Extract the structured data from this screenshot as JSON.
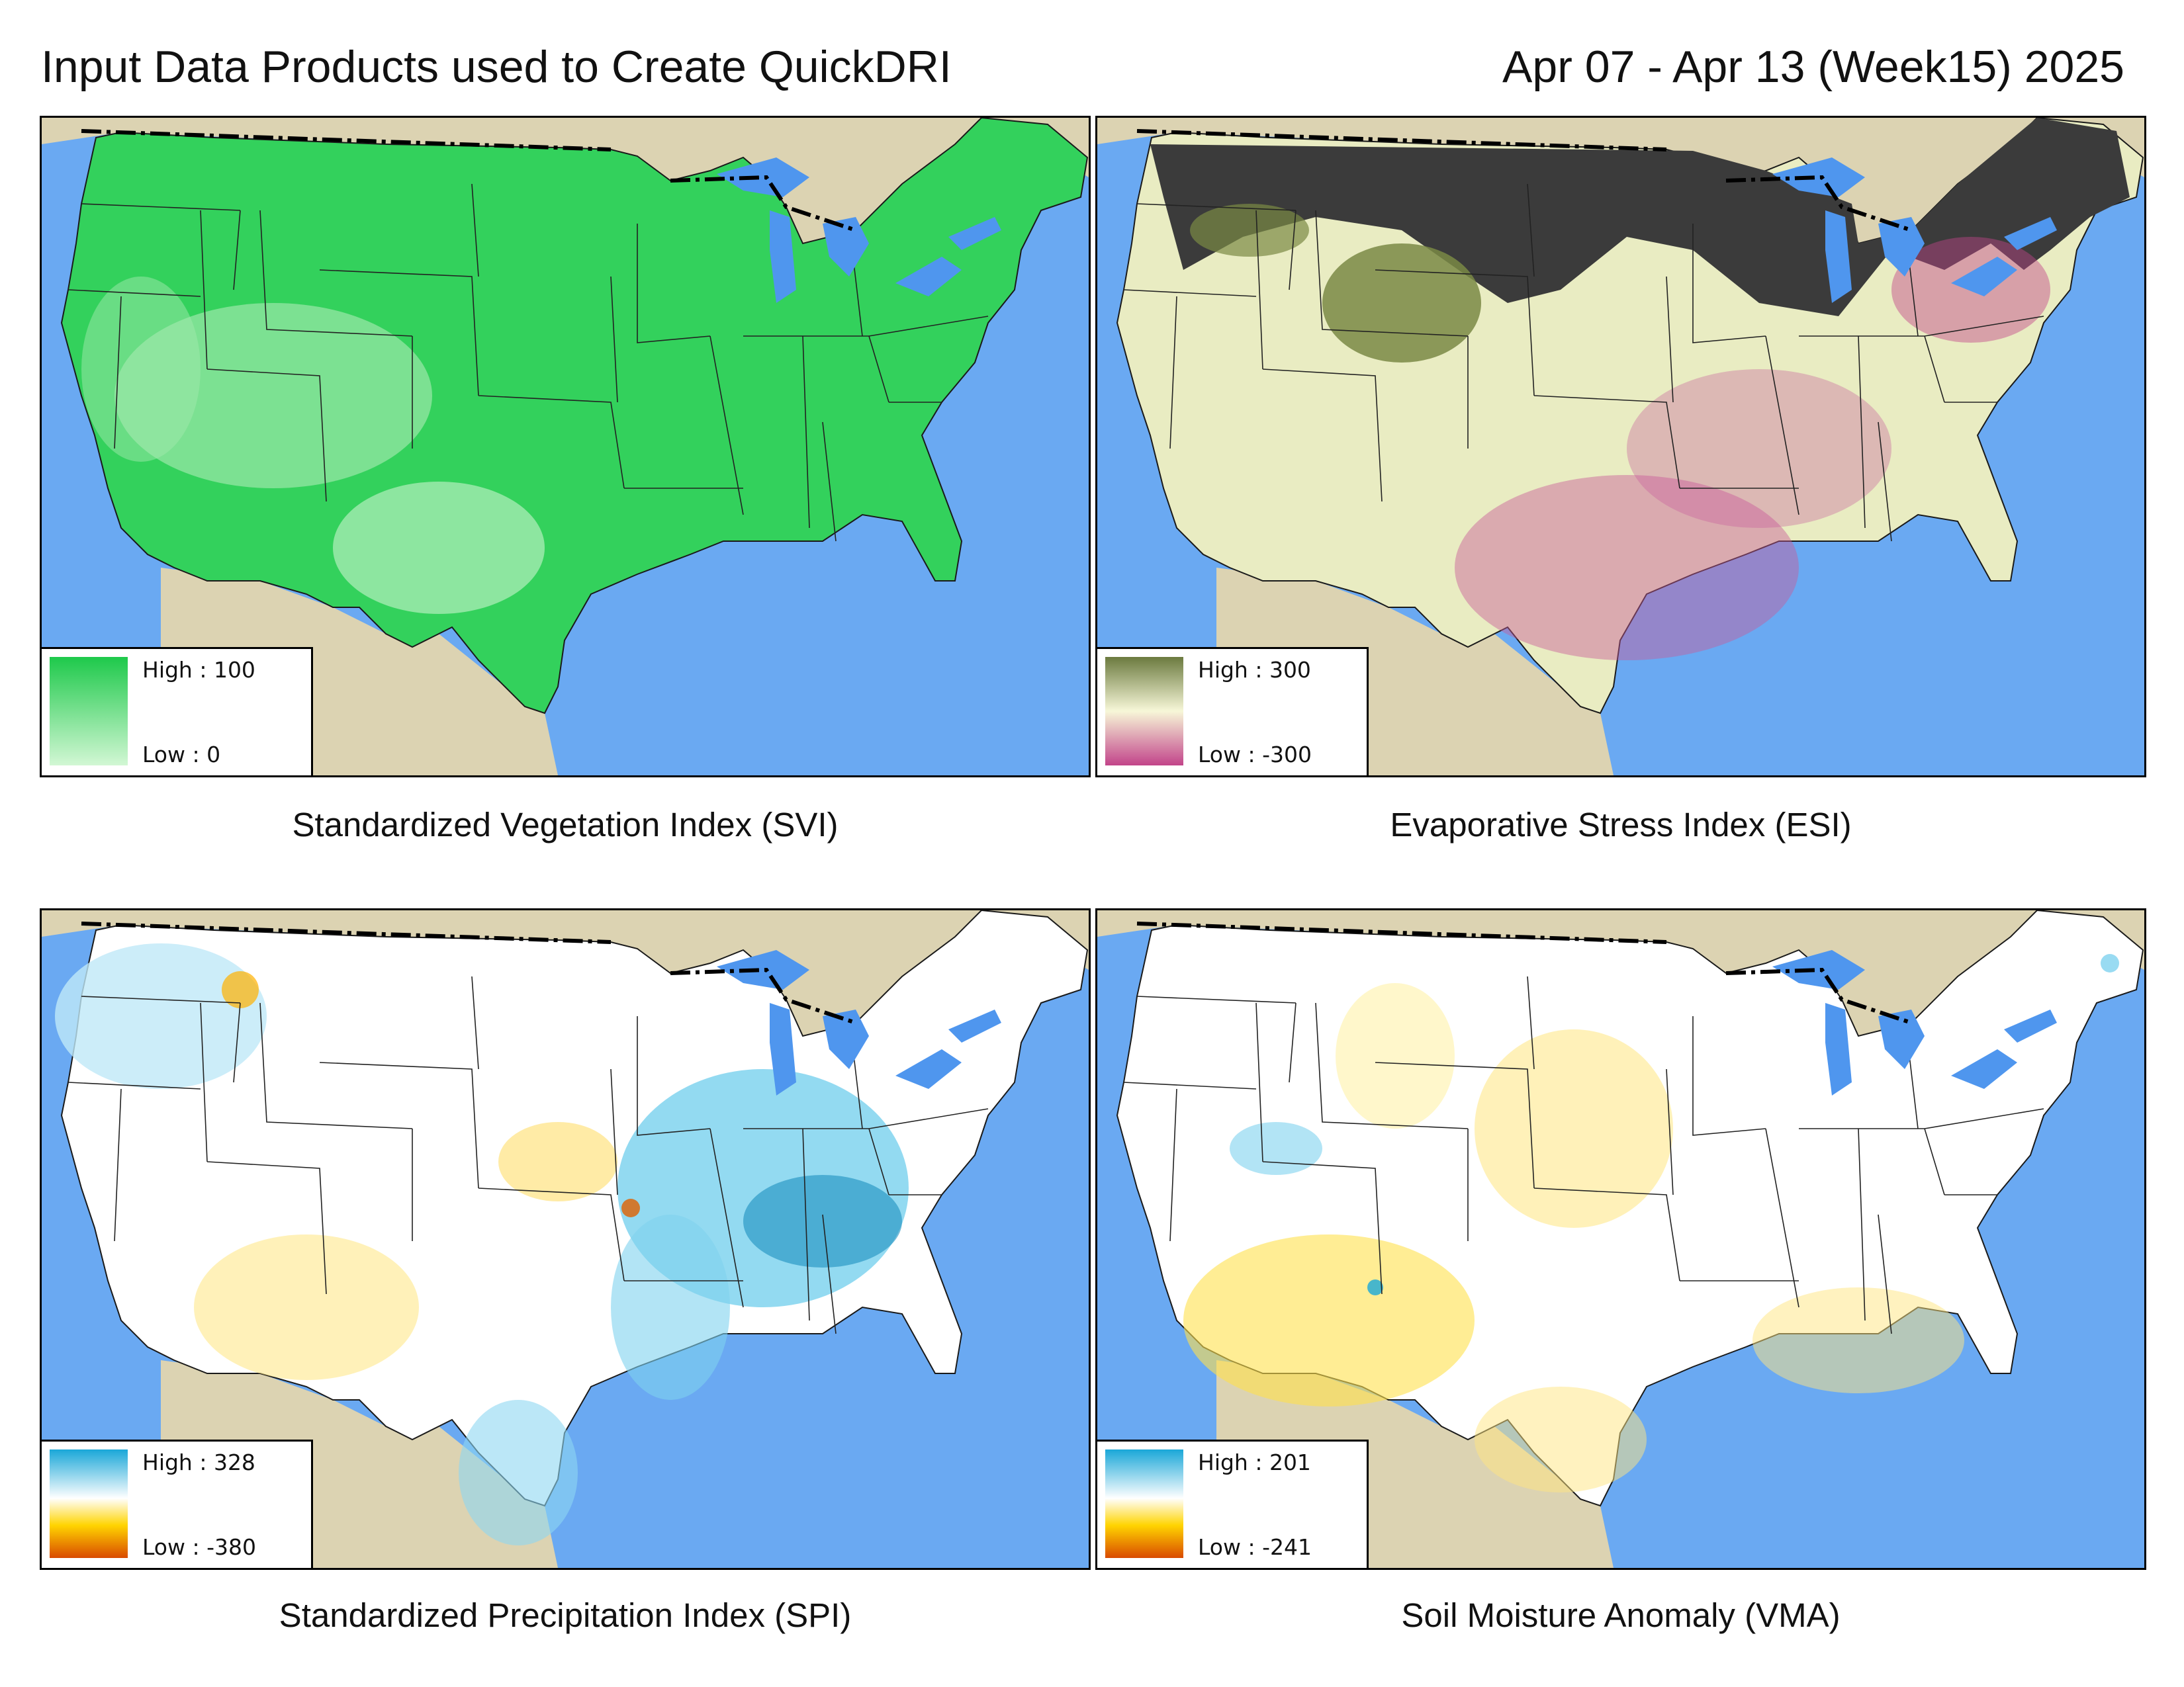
{
  "header": {
    "title": "Input Data Products used to Create QuickDRI",
    "date_range": "Apr 07 - Apr 13 (Week15) 2025"
  },
  "colors": {
    "ocean": "#6aa9f2",
    "land_outside": "#dcd3b2",
    "lakes": "#4f96ee"
  },
  "panels": [
    {
      "id": "svi",
      "caption": "Standardized Vegetation Index (SVI)",
      "legend": {
        "high": "High : 100",
        "low": "Low : 0"
      },
      "fill_color": "#33d15c",
      "icons": [
        "map-of-conterminous-us"
      ]
    },
    {
      "id": "esi",
      "caption": "Evaporative Stress Index (ESI)",
      "legend": {
        "high": "High : 300",
        "low": "Low : -300"
      },
      "fill_color": "#e9ecc2",
      "no_data_color": "#3b3b3b"
    },
    {
      "id": "spi",
      "caption": "Standardized Precipitation Index (SPI)",
      "legend": {
        "high": "High : 328",
        "low": "Low : -380"
      },
      "fill_color": "#ffffff"
    },
    {
      "id": "vma",
      "caption": "Soil Moisture Anomaly (VMA)",
      "legend": {
        "high": "High : 201",
        "low": "Low : -241"
      },
      "fill_color": "#ffffff"
    }
  ]
}
